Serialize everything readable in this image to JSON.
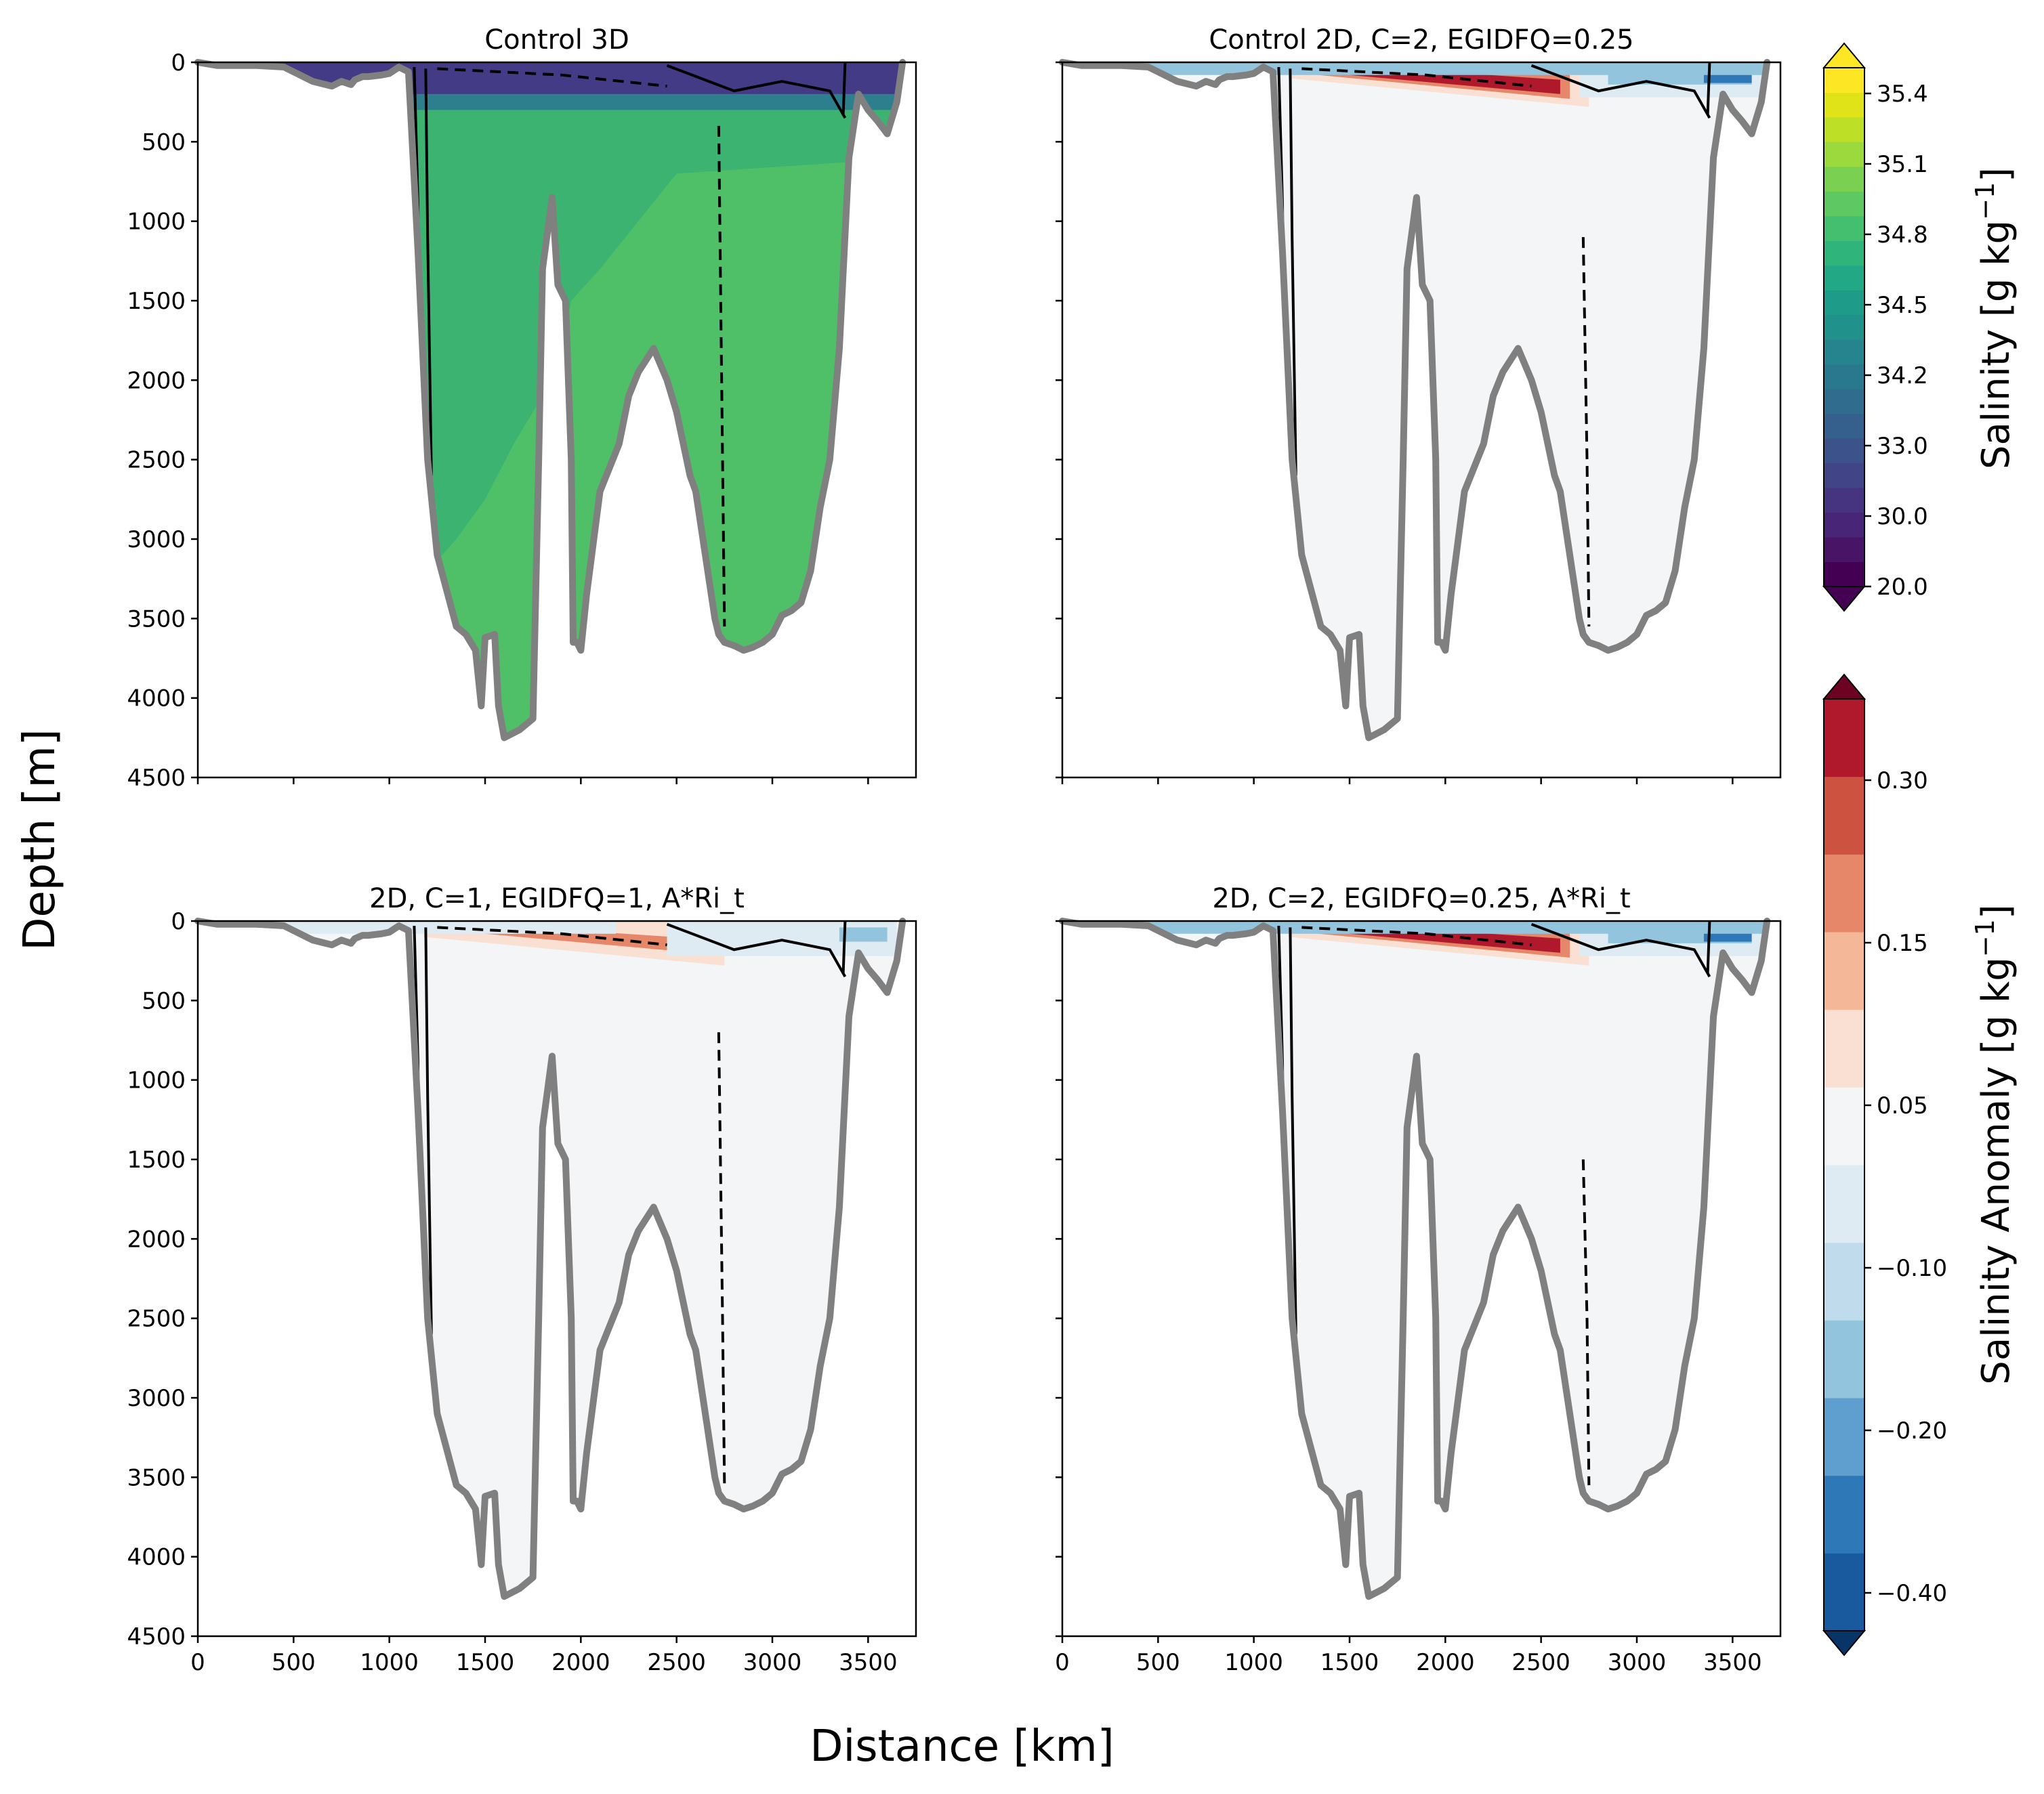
{
  "chart_data": [
    {
      "type": "heatmap",
      "title": "Control 3D",
      "field": "salinity",
      "xlim": [
        0,
        3750
      ],
      "ylim": [
        4500,
        0
      ],
      "xticks": [],
      "yticks": [
        0,
        500,
        1000,
        1500,
        2000,
        2500,
        3000,
        3500,
        4000,
        4500
      ],
      "regions": [
        {
          "name": "surface",
          "depth": [
            0,
            250
          ],
          "value": 33.0
        },
        {
          "name": "interior-west",
          "depth": [
            250,
            4300
          ],
          "value": 34.8
        },
        {
          "name": "interior-east",
          "depth": [
            1500,
            3700
          ],
          "value": 34.9
        }
      ]
    },
    {
      "type": "heatmap",
      "title": "Control 2D, C=2, EGIDFQ=0.25",
      "field": "salinity_anomaly",
      "xlim": [
        0,
        3750
      ],
      "ylim": [
        4500,
        0
      ],
      "xticks": [],
      "yticks": [],
      "features": [
        {
          "name": "positive-anomaly",
          "x": [
            1200,
            2700
          ],
          "depth": [
            0,
            250
          ],
          "value": 0.3
        },
        {
          "name": "negative-anomaly",
          "x": [
            2700,
            3650
          ],
          "depth": [
            0,
            150
          ],
          "value": -0.2
        }
      ]
    },
    {
      "type": "heatmap",
      "title": "2D, C=1, EGIDFQ=1, A*Ri_t",
      "field": "salinity_anomaly",
      "xlim": [
        0,
        3750
      ],
      "ylim": [
        4500,
        0
      ],
      "xticks": [
        0,
        500,
        1000,
        1500,
        2000,
        2500,
        3000,
        3500
      ],
      "yticks": [
        0,
        500,
        1000,
        1500,
        2000,
        2500,
        3000,
        3500,
        4000,
        4500
      ],
      "features": [
        {
          "name": "positive-anomaly",
          "x": [
            1300,
            2400
          ],
          "depth": [
            0,
            200
          ],
          "value": 0.15
        },
        {
          "name": "negative-anomaly",
          "x": [
            2400,
            3650
          ],
          "depth": [
            0,
            250
          ],
          "value": -0.1
        }
      ]
    },
    {
      "type": "heatmap",
      "title": "2D, C=2, EGIDFQ=0.25, A*Ri_t",
      "field": "salinity_anomaly",
      "xlim": [
        0,
        3750
      ],
      "ylim": [
        4500,
        0
      ],
      "xticks": [
        0,
        500,
        1000,
        1500,
        2000,
        2500,
        3000,
        3500
      ],
      "yticks": [],
      "features": [
        {
          "name": "positive-anomaly",
          "x": [
            1200,
            2700
          ],
          "depth": [
            0,
            250
          ],
          "value": 0.3
        },
        {
          "name": "negative-anomaly",
          "x": [
            2600,
            3650
          ],
          "depth": [
            0,
            200
          ],
          "value": -0.2
        }
      ]
    }
  ],
  "bathymetry": {
    "x": [
      0,
      100,
      300,
      450,
      600,
      700,
      750,
      800,
      820,
      840,
      860,
      890,
      960,
      1000,
      1050,
      1100,
      1150,
      1200,
      1250,
      1350,
      1400,
      1450,
      1480,
      1500,
      1550,
      1570,
      1600,
      1680,
      1750,
      1780,
      1800,
      1850,
      1880,
      1920,
      1950,
      1960,
      1980,
      2000,
      2030,
      2100,
      2200,
      2250,
      2300,
      2380,
      2450,
      2500,
      2570,
      2600,
      2650,
      2700,
      2720,
      2750,
      2800,
      2850,
      2900,
      2950,
      3000,
      3050,
      3100,
      3150,
      3200,
      3250,
      3300,
      3350,
      3400,
      3450,
      3500,
      3550,
      3600,
      3650,
      3680
    ],
    "depth": [
      0,
      20,
      20,
      30,
      120,
      150,
      120,
      140,
      110,
      100,
      90,
      90,
      80,
      70,
      30,
      60,
      1200,
      2500,
      3100,
      3550,
      3600,
      3700,
      4050,
      3620,
      3600,
      4050,
      4250,
      4200,
      4130,
      2500,
      1300,
      850,
      1400,
      1500,
      2500,
      3650,
      3650,
      3700,
      3350,
      2700,
      2400,
      2100,
      1950,
      1800,
      2000,
      2200,
      2600,
      2700,
      3100,
      3500,
      3600,
      3650,
      3670,
      3700,
      3680,
      3650,
      3600,
      3480,
      3450,
      3400,
      3200,
      2800,
      2500,
      1800,
      600,
      200,
      300,
      370,
      450,
      250,
      0
    ]
  },
  "colorbars": [
    {
      "label": "Salinity [g kg",
      "unit_exponent": "−1",
      "unit_close": "]",
      "ticks": [
        "35.4",
        "35.1",
        "34.8",
        "34.5",
        "34.2",
        "33.0",
        "30.0",
        "20.0"
      ],
      "colors": [
        "#440154",
        "#471466",
        "#482576",
        "#463480",
        "#414487",
        "#3b528b",
        "#355f8d",
        "#2f6c8e",
        "#2a788e",
        "#25848e",
        "#21918c",
        "#1e9c89",
        "#22a884",
        "#2fb47c",
        "#44bf70",
        "#5ec962",
        "#7ad151",
        "#9bd93c",
        "#bddf26",
        "#dfe318",
        "#fde725"
      ]
    },
    {
      "label": "Salinity Anomaly [g kg",
      "unit_exponent": "−1",
      "unit_close": "]",
      "ticks": [
        "0.30",
        "0.15",
        "0.05",
        "−0.10",
        "−0.20",
        "−0.40"
      ],
      "colors": [
        "#185a9d",
        "#2f78b7",
        "#5f9fcf",
        "#93c4de",
        "#c0dcec",
        "#deebf2",
        "#f3f5f7",
        "#fae0d2",
        "#f4b899",
        "#e58768",
        "#cd5240",
        "#b0192c"
      ],
      "extend_low": "#083468",
      "extend_high": "#6c0322"
    }
  ],
  "axes": {
    "xlabel": "Distance [km]",
    "ylabel": "Depth [m]"
  },
  "colors": {
    "bathymetry": "#808080",
    "surface": "#433b85",
    "interior_west": "#3db371",
    "interior_east": "#4fbf68",
    "anomaly_background": "#f3f5f7",
    "pos_strong": "#b0192c",
    "pos_mid": "#e58768",
    "pos_weak": "#fae0d2",
    "neg_strong": "#2f78b7",
    "neg_mid": "#93c4de",
    "neg_weak": "#deebf2"
  }
}
